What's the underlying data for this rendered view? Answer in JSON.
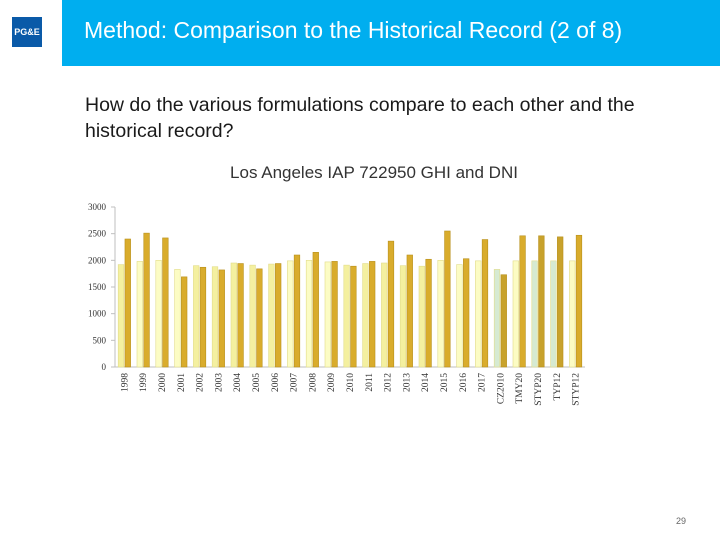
{
  "header": {
    "title": "Method: Comparison to the Historical Record (2 of 8)",
    "logo_text": "PG&E",
    "bar_color": "#00aeef"
  },
  "question": "How do the various formulations compare to each other and the historical record?",
  "page_number": "29",
  "chart_data": {
    "type": "bar",
    "title": "Los Angeles IAP 722950 GHI and DNI",
    "xlabel": "",
    "ylabel": "",
    "ylim": [
      0,
      3000
    ],
    "yticks": [
      0,
      500,
      1000,
      1500,
      2000,
      2500,
      3000
    ],
    "grid": false,
    "legend": "none",
    "categories": [
      "1998",
      "1999",
      "2000",
      "2001",
      "2002",
      "2003",
      "2004",
      "2005",
      "2006",
      "2007",
      "2008",
      "2009",
      "2010",
      "2011",
      "2012",
      "2013",
      "2014",
      "2015",
      "2016",
      "2017",
      "CZ2010",
      "TMY20",
      "STYP20",
      "TYP12",
      "STYP12"
    ],
    "series": [
      {
        "values": [
          1920,
          1980,
          2000,
          1830,
          1900,
          1880,
          1950,
          1910,
          1930,
          1990,
          2000,
          1970,
          1910,
          1940,
          1950,
          1900,
          1890,
          2000,
          1920,
          1990,
          1830,
          1990,
          1990,
          1990,
          1990
        ],
        "colors": [
          "#f4f0a0",
          "#fcfcc4",
          "#fcfcc4",
          "#fcfcc4",
          "#f4f0a0",
          "#f4f0a0",
          "#f4f0a0",
          "#f4f0a0",
          "#f4f0a0",
          "#fcfcc4",
          "#fcfcc4",
          "#fcfcc4",
          "#f4f0a0",
          "#f4f0a0",
          "#f4f0a0",
          "#f4f0a0",
          "#f4f0a0",
          "#fcfcc4",
          "#fcfcc4",
          "#fcfcc4",
          "#d6ead2",
          "#fcfcc4",
          "#d6ead2",
          "#d6ead2",
          "#fcfcc4"
        ]
      },
      {
        "values": [
          2400,
          2510,
          2420,
          1690,
          1870,
          1820,
          1940,
          1840,
          1940,
          2100,
          2150,
          1980,
          1890,
          1980,
          2360,
          2100,
          2020,
          2550,
          2030,
          2390,
          1730,
          2460,
          2460,
          2440,
          2470
        ],
        "colors": [
          "#d9ac2c",
          "#d9ac2c",
          "#d9ac2c",
          "#d9ac2c",
          "#d9ac2c",
          "#d9ac2c",
          "#d9ac2c",
          "#d9ac2c",
          "#d9ac2c",
          "#d9ac2c",
          "#d9ac2c",
          "#d9ac2c",
          "#d9ac2c",
          "#d9ac2c",
          "#d9ac2c",
          "#d9ac2c",
          "#d9ac2c",
          "#d9ac2c",
          "#d9ac2c",
          "#d9ac2c",
          "#c8a22c",
          "#d9ac2c",
          "#c8a22c",
          "#c8a22c",
          "#d9ac2c"
        ]
      }
    ]
  }
}
